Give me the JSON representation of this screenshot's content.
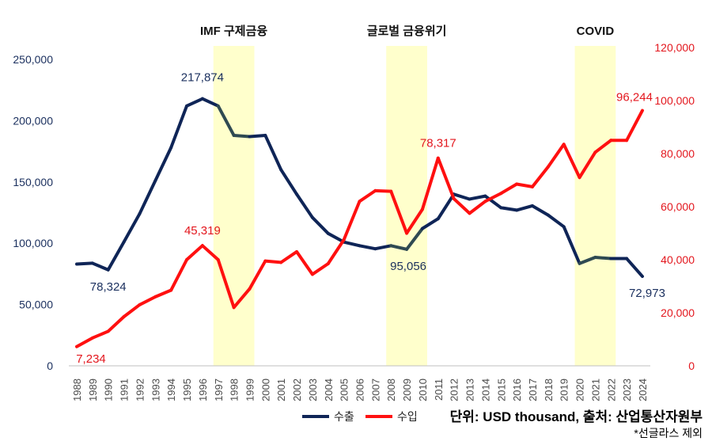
{
  "chart_data": {
    "type": "line",
    "title": "",
    "xlabel": "",
    "ylabel_left": "",
    "ylabel_right": "",
    "x": [
      1988,
      1989,
      1990,
      1991,
      1992,
      1993,
      1994,
      1995,
      1996,
      1997,
      1998,
      1999,
      2000,
      2001,
      2002,
      2003,
      2004,
      2005,
      2006,
      2007,
      2008,
      2009,
      2010,
      2011,
      2012,
      2013,
      2014,
      2015,
      2016,
      2017,
      2018,
      2019,
      2020,
      2021,
      2022,
      2023,
      2024
    ],
    "x_tick_labels": [
      "1988",
      "1989",
      "1990",
      "1991",
      "1992",
      "1993",
      "1994",
      "1995",
      "1996",
      "1997",
      "1998",
      "1999",
      "2000",
      "2001",
      "2002",
      "2003",
      "2004",
      "2005",
      "2006",
      "2007",
      "2008",
      "2009",
      "2010",
      "2011",
      "2012",
      "2013",
      "2014",
      "2015",
      "2016",
      "2017",
      "2018",
      "2019",
      "2020",
      "2021",
      "2022",
      "2023",
      "2024"
    ],
    "y_left_range": [
      0,
      250000
    ],
    "y_left_ticks": [
      0,
      50000,
      100000,
      150000,
      200000,
      250000
    ],
    "y_left_tick_labels": [
      "0",
      "50,000",
      "100,000",
      "150,000",
      "200,000",
      "250,000"
    ],
    "y_right_range": [
      0,
      120000
    ],
    "y_right_ticks": [
      0,
      20000,
      40000,
      60000,
      80000,
      100000,
      120000
    ],
    "y_right_tick_labels": [
      "0",
      "20,000",
      "40,000",
      "60,000",
      "80,000",
      "100,000",
      "120,000"
    ],
    "series": [
      {
        "name": "수출",
        "axis": "left",
        "color": "#0f2557",
        "highlight_color": "#2f4a52",
        "values": [
          83000,
          83700,
          78324,
          101000,
          124000,
          151000,
          178000,
          212000,
          217874,
          212000,
          188000,
          187000,
          188000,
          160000,
          140000,
          121000,
          108000,
          101000,
          98000,
          95500,
          98000,
          95056,
          112000,
          120000,
          140000,
          136000,
          138500,
          129000,
          127000,
          130500,
          123000,
          113500,
          83500,
          88500,
          87500,
          87500,
          72973
        ]
      },
      {
        "name": "수입",
        "axis": "right",
        "color": "#ff1010",
        "values": [
          7234,
          10500,
          13000,
          18500,
          23000,
          26000,
          28500,
          40000,
          45319,
          40000,
          22000,
          29000,
          39500,
          39000,
          43000,
          34500,
          38500,
          47500,
          62000,
          66000,
          65800,
          50000,
          59000,
          78317,
          63000,
          57500,
          62000,
          65000,
          68500,
          67500,
          75000,
          83500,
          71000,
          80500,
          85000,
          85000,
          96244
        ]
      }
    ],
    "annotations": {
      "export_labels": [
        {
          "year": 1990,
          "text": "78,324"
        },
        {
          "year": 1996,
          "text": "217,874"
        },
        {
          "year": 2009,
          "text": "95,056"
        },
        {
          "year": 2024,
          "text": "72,973"
        }
      ],
      "import_labels": [
        {
          "year": 1988,
          "text": "7,234"
        },
        {
          "year": 1996,
          "text": "45,319"
        },
        {
          "year": 2011,
          "text": "78,317"
        },
        {
          "year": 2024,
          "text": "96,244"
        }
      ],
      "shaded_periods": [
        {
          "label": "IMF 구제금융",
          "start": 1997,
          "end": 1999
        },
        {
          "label": "글로벌 금융위기",
          "start": 2008,
          "end": 2010
        },
        {
          "label": "COVID",
          "start": 2020,
          "end": 2022
        }
      ]
    },
    "legend": {
      "position": "bottom-right",
      "entries": [
        "수출",
        "수입"
      ]
    }
  },
  "footer": {
    "source": "단위: USD thousand, 출처: 산업통산자원부",
    "note": "*선글라스 제외"
  }
}
